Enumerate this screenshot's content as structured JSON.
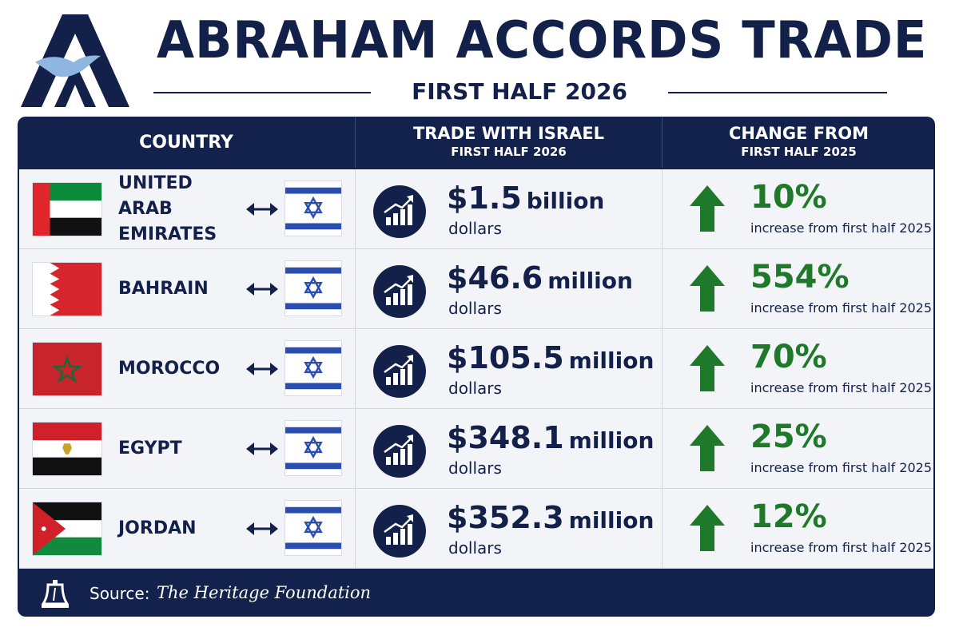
{
  "header": {
    "title": "ABRAHAM ACCORDS TRADE",
    "subtitle": "FIRST HALF 2026"
  },
  "columns": {
    "country": "COUNTRY",
    "trade_main": "TRADE WITH ISRAEL",
    "trade_sub": "FIRST HALF 2026",
    "change_main": "CHANGE FROM",
    "change_sub": "FIRST HALF 2025"
  },
  "chart_data": {
    "type": "table",
    "title": "ABRAHAM ACCORDS TRADE",
    "subtitle": "FIRST HALF 2026",
    "columns": [
      "COUNTRY",
      "TRADE WITH ISRAEL FIRST HALF 2026",
      "CHANGE FROM FIRST HALF 2025"
    ],
    "rows": [
      {
        "country_line1": "UNITED ARAB",
        "country_line2": "EMIRATES",
        "flag": "uae",
        "amount": "$1.5",
        "unit": "billion",
        "currency": "dollars",
        "change": "10%",
        "change_note": "increase from first half 2025"
      },
      {
        "country_line1": "BAHRAIN",
        "country_line2": "",
        "flag": "bahrain",
        "amount": "$46.6",
        "unit": "million",
        "currency": "dollars",
        "change": "554%",
        "change_note": "increase from first half 2025"
      },
      {
        "country_line1": "MOROCCO",
        "country_line2": "",
        "flag": "morocco",
        "amount": "$105.5",
        "unit": "million",
        "currency": "dollars",
        "change": "70%",
        "change_note": "increase from first half 2025"
      },
      {
        "country_line1": "EGYPT",
        "country_line2": "",
        "flag": "egypt",
        "amount": "$348.1",
        "unit": "million",
        "currency": "dollars",
        "change": "25%",
        "change_note": "increase from first half 2025"
      },
      {
        "country_line1": "JORDAN",
        "country_line2": "",
        "flag": "jordan",
        "amount": "$352.3",
        "unit": "million",
        "currency": "dollars",
        "change": "12%",
        "change_note": "increase from first half 2025"
      }
    ]
  },
  "footer": {
    "source_label": "Source:",
    "source_name": "The Heritage Foundation"
  },
  "colors": {
    "navy": "#13214a",
    "green": "#1e7a2a",
    "israel_blue": "#2a4eb0"
  },
  "icons": {
    "logo": "abraham-accords-logo",
    "link": "double-arrow-icon",
    "trend": "growth-chart-icon",
    "change": "up-arrow-icon",
    "source": "liberty-bell-icon"
  }
}
